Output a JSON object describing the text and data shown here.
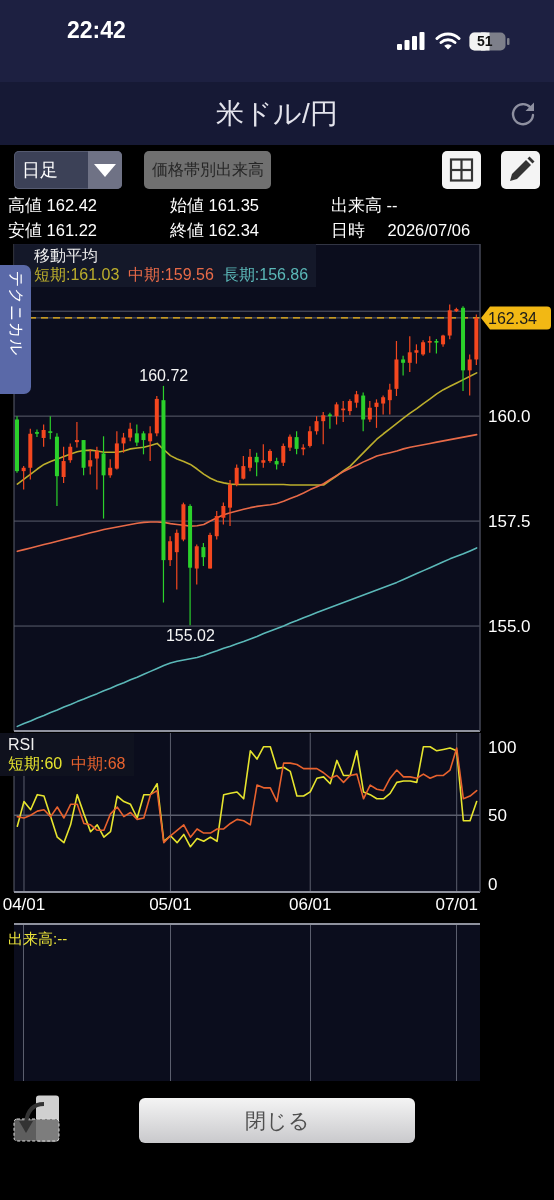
{
  "chart_data": [
    {
      "type": "candlestick",
      "title": "米ドル/円",
      "categories": [
        null,
        null,
        null,
        null,
        null,
        null,
        null,
        null,
        null,
        null,
        null,
        null,
        null,
        null,
        null,
        null,
        null,
        null,
        null,
        null,
        null,
        null,
        null,
        null,
        null,
        null,
        null,
        null,
        null,
        null,
        null,
        null,
        null,
        null,
        null,
        null,
        null,
        null,
        null,
        null,
        null,
        null,
        null,
        null,
        null,
        null,
        null,
        null,
        null,
        null,
        null,
        null,
        null,
        null,
        null,
        null,
        null,
        null,
        null,
        null,
        null,
        null,
        null,
        null,
        null,
        null,
        null,
        null,
        null,
        null
      ],
      "ohlc": [
        [
          159.92,
          160.0,
          158.65,
          158.69
        ],
        [
          158.69,
          158.81,
          158.25,
          158.77
        ],
        [
          158.77,
          159.7,
          158.49,
          159.58
        ],
        [
          159.62,
          159.68,
          159.5,
          159.58
        ],
        [
          159.48,
          159.8,
          159.27,
          159.67
        ],
        [
          159.64,
          160.0,
          159.45,
          159.6
        ],
        [
          159.51,
          159.59,
          157.86,
          158.57
        ],
        [
          158.55,
          159.27,
          158.41,
          158.93
        ],
        [
          158.95,
          159.35,
          158.89,
          159.27
        ],
        [
          159.38,
          159.86,
          159.25,
          159.43
        ],
        [
          159.43,
          159.43,
          158.59,
          158.77
        ],
        [
          158.8,
          159.21,
          158.61,
          158.95
        ],
        [
          158.99,
          159.27,
          158.25,
          159.17
        ],
        [
          159.11,
          159.52,
          157.56,
          158.59
        ],
        [
          158.59,
          158.97,
          158.53,
          158.77
        ],
        [
          158.75,
          159.64,
          158.73,
          159.35
        ],
        [
          159.35,
          159.6,
          159.13,
          159.49
        ],
        [
          159.49,
          159.84,
          159.4,
          159.7
        ],
        [
          159.59,
          159.8,
          159.29,
          159.37
        ],
        [
          159.59,
          159.64,
          159.09,
          159.43
        ],
        [
          159.4,
          159.76,
          158.93,
          159.59
        ],
        [
          159.59,
          160.48,
          159.52,
          160.41
        ],
        [
          160.38,
          160.72,
          155.56,
          156.57
        ],
        [
          156.57,
          157.14,
          156.43,
          157.02
        ],
        [
          156.76,
          157.3,
          155.87,
          157.22
        ],
        [
          157.06,
          157.94,
          157.02,
          157.9
        ],
        [
          157.86,
          157.9,
          155.02,
          156.39
        ],
        [
          156.37,
          156.94,
          155.99,
          156.9
        ],
        [
          156.88,
          156.98,
          156.43,
          156.64
        ],
        [
          156.37,
          157.22,
          156.37,
          157.17
        ],
        [
          157.14,
          157.74,
          157.06,
          157.62
        ],
        [
          157.58,
          157.94,
          157.42,
          157.86
        ],
        [
          157.82,
          158.48,
          157.38,
          158.37
        ],
        [
          158.37,
          158.85,
          158.33,
          158.77
        ],
        [
          158.51,
          159.05,
          158.49,
          158.81
        ],
        [
          158.77,
          159.22,
          158.69,
          159.03
        ],
        [
          159.03,
          159.13,
          158.57,
          158.9
        ],
        [
          158.89,
          159.33,
          158.77,
          158.95
        ],
        [
          158.93,
          159.21,
          158.89,
          159.17
        ],
        [
          158.93,
          159.01,
          158.73,
          158.85
        ],
        [
          158.89,
          159.35,
          158.81,
          159.29
        ],
        [
          159.25,
          159.56,
          159.17,
          159.51
        ],
        [
          159.5,
          159.64,
          159.09,
          159.22
        ],
        [
          159.21,
          159.33,
          159.07,
          159.25
        ],
        [
          159.29,
          159.76,
          159.25,
          159.64
        ],
        [
          159.64,
          160.0,
          159.56,
          159.88
        ],
        [
          159.88,
          160.1,
          159.33,
          160.02
        ],
        [
          160.04,
          160.08,
          159.7,
          160.0
        ],
        [
          160.0,
          160.33,
          159.8,
          160.28
        ],
        [
          160.14,
          160.36,
          159.86,
          160.18
        ],
        [
          160.12,
          160.4,
          160.02,
          160.36
        ],
        [
          160.32,
          160.6,
          160.2,
          160.52
        ],
        [
          160.49,
          160.56,
          159.64,
          159.92
        ],
        [
          159.92,
          160.36,
          159.86,
          160.2
        ],
        [
          160.22,
          160.4,
          159.72,
          160.32
        ],
        [
          160.3,
          160.49,
          160.04,
          160.45
        ],
        [
          160.38,
          160.77,
          160.04,
          160.63
        ],
        [
          160.65,
          161.79,
          160.48,
          161.35
        ],
        [
          161.35,
          161.44,
          160.97,
          161.27
        ],
        [
          161.27,
          161.9,
          161.05,
          161.52
        ],
        [
          161.51,
          161.71,
          161.25,
          161.57
        ],
        [
          161.47,
          161.81,
          161.44,
          161.76
        ],
        [
          161.75,
          161.9,
          161.51,
          161.79
        ],
        [
          161.79,
          161.84,
          161.49,
          161.75
        ],
        [
          161.71,
          161.94,
          161.65,
          161.92
        ],
        [
          161.92,
          162.66,
          161.83,
          162.52
        ],
        [
          162.5,
          162.58,
          162.48,
          162.55
        ],
        [
          162.58,
          162.62,
          160.6,
          161.09
        ],
        [
          161.09,
          161.47,
          160.49,
          161.35
        ],
        [
          161.35,
          162.42,
          161.22,
          162.34
        ]
      ],
      "colors": [
        "#2bd12b",
        "#f4471f",
        "#f4471f",
        "#2bd12b",
        "#f4471f",
        "#2bd12b",
        "#2bd12b",
        "#f4471f",
        "#f4471f",
        "#f4471f",
        "#2bd12b",
        "#f4471f",
        "#f4471f",
        "#2bd12b",
        "#f4471f",
        "#f4471f",
        "#f4471f",
        "#f4471f",
        "#2bd12b",
        "#2bd12b",
        "#f4471f",
        "#f4471f",
        "#2bd12b",
        "#f4471f",
        "#f4471f",
        "#f4471f",
        "#2bd12b",
        "#f4471f",
        "#2bd12b",
        "#f4471f",
        "#f4471f",
        "#f4471f",
        "#f4471f",
        "#f4471f",
        "#f4471f",
        "#f4471f",
        "#2bd12b",
        "#f4471f",
        "#f4471f",
        "#2bd12b",
        "#f4471f",
        "#f4471f",
        "#2bd12b",
        "#f4471f",
        "#f4471f",
        "#f4471f",
        "#f4471f",
        "#2bd12b",
        "#f4471f",
        "#f4471f",
        "#f4471f",
        "#f4471f",
        "#2bd12b",
        "#f4471f",
        "#f4471f",
        "#f4471f",
        "#f4471f",
        "#f4471f",
        "#2bd12b",
        "#f4471f",
        "#f4471f",
        "#f4471f",
        "#f4471f",
        "#2bd12b",
        "#f4471f",
        "#f4471f",
        "#f4471f",
        "#2bd12b",
        "#f4471f",
        "#f4471f"
      ],
      "series": [
        {
          "type": "line",
          "name": "短期:161.03",
          "color": "#bcae2c",
          "values": [
            158.38,
            158.5,
            158.62,
            158.74,
            158.85,
            158.92,
            158.98,
            159.04,
            159.1,
            159.15,
            159.18,
            159.19,
            159.17,
            159.14,
            159.14,
            159.14,
            159.17,
            159.22,
            159.24,
            159.26,
            159.3,
            159.35,
            159.2,
            159.06,
            158.98,
            158.92,
            158.85,
            158.74,
            158.62,
            158.52,
            158.45,
            158.41,
            158.38,
            158.37,
            158.37,
            158.37,
            158.37,
            158.37,
            158.37,
            158.37,
            158.37,
            158.36,
            158.36,
            158.36,
            158.36,
            158.36,
            158.36,
            158.47,
            158.58,
            158.7,
            158.81,
            158.97,
            159.13,
            159.29,
            159.45,
            159.58,
            159.7,
            159.83,
            159.95,
            160.07,
            160.18,
            160.3,
            160.41,
            160.53,
            160.63,
            160.71,
            160.79,
            160.87,
            160.95,
            161.03
          ]
        },
        {
          "type": "line",
          "name": "中期:159.56",
          "color": "#e86a48",
          "values": [
            156.78,
            156.82,
            156.86,
            156.9,
            156.94,
            156.98,
            157.02,
            157.06,
            157.1,
            157.14,
            157.18,
            157.22,
            157.26,
            157.3,
            157.33,
            157.36,
            157.39,
            157.42,
            157.45,
            157.47,
            157.48,
            157.48,
            157.47,
            157.44,
            157.42,
            157.4,
            157.38,
            157.39,
            157.42,
            157.5,
            157.58,
            157.65,
            157.7,
            157.74,
            157.78,
            157.82,
            157.85,
            157.87,
            157.89,
            157.92,
            157.97,
            158.04,
            158.1,
            158.17,
            158.25,
            158.32,
            158.39,
            158.49,
            158.59,
            158.68,
            158.76,
            158.83,
            158.91,
            158.98,
            159.05,
            159.09,
            159.13,
            159.17,
            159.22,
            159.26,
            159.29,
            159.32,
            159.35,
            159.38,
            159.41,
            159.44,
            159.47,
            159.5,
            159.53,
            159.56
          ]
        },
        {
          "type": "line",
          "name": "長期:156.86",
          "color": "#5bb8b8",
          "values": [
            152.61,
            152.68,
            152.74,
            152.81,
            152.87,
            152.94,
            153.0,
            153.07,
            153.13,
            153.2,
            153.26,
            153.33,
            153.39,
            153.46,
            153.52,
            153.59,
            153.65,
            153.72,
            153.78,
            153.85,
            153.92,
            153.99,
            154.06,
            154.12,
            154.16,
            154.19,
            154.22,
            154.25,
            154.3,
            154.36,
            154.41,
            154.47,
            154.52,
            154.58,
            154.63,
            154.69,
            154.75,
            154.82,
            154.88,
            154.94,
            155.0,
            155.07,
            155.13,
            155.2,
            155.26,
            155.32,
            155.38,
            155.44,
            155.5,
            155.56,
            155.62,
            155.68,
            155.74,
            155.8,
            155.86,
            155.92,
            155.98,
            156.04,
            156.11,
            156.18,
            156.25,
            156.32,
            156.39,
            156.46,
            156.53,
            156.6,
            156.66,
            156.72,
            156.79,
            156.86
          ]
        }
      ],
      "legend": "top left",
      "legend_title": "移動平均",
      "ylim": [
        152.5,
        164.1
      ],
      "yticks": [
        {
          "value": 155,
          "label": "155.0"
        },
        157.5,
        {
          "value": 160,
          "label": "160.0"
        },
        162.34,
        {
          "value": 162.5,
          "label": null
        }
      ],
      "grid": true,
      "ref_lines": [
        {
          "axis": "y",
          "value": 162.34,
          "color": "#f2b814",
          "line_style": "dashed"
        }
      ],
      "annotations": [
        "22:42",
        "51",
        "日足",
        "価格帯別出来高",
        "高値 162.42",
        "始値 161.35",
        "出来高 --",
        "安値 161.22",
        "終値 162.34",
        "日時 2026/07/06",
        "テクニカル",
        "閉じる",
        {
          "text": "160.72",
          "y": 160.72
        },
        {
          "text": "155.02",
          "y": 155.02
        }
      ]
    },
    {
      "type": "line",
      "legend_title": "RSI",
      "categories": [
        null,
        "04/01",
        null,
        null,
        null,
        null,
        null,
        null,
        null,
        null,
        null,
        null,
        null,
        null,
        null,
        null,
        null,
        null,
        null,
        null,
        null,
        null,
        null,
        "05/01",
        null,
        null,
        null,
        null,
        null,
        null,
        null,
        null,
        null,
        null,
        null,
        null,
        null,
        null,
        null,
        null,
        null,
        null,
        null,
        null,
        "06/01",
        null,
        null,
        null,
        null,
        null,
        null,
        null,
        null,
        null,
        null,
        null,
        null,
        null,
        null,
        null,
        null,
        null,
        null,
        null,
        null,
        null,
        "07/01",
        null,
        null,
        null
      ],
      "series": [
        {
          "name": "短期:60",
          "color": "#e6e42e",
          "values": [
            42,
            60,
            54,
            65,
            64,
            49,
            34,
            30,
            43,
            65,
            51,
            38,
            43,
            34,
            38,
            64,
            60,
            58,
            48,
            65,
            65,
            73,
            31,
            35,
            30,
            36,
            27,
            33,
            31,
            34,
            31,
            65,
            66,
            67,
            62,
            97,
            91,
            100,
            100,
            84,
            85,
            82,
            64,
            64,
            67,
            77,
            78,
            73,
            90,
            79,
            79,
            97,
            67,
            65,
            62,
            62,
            66,
            74,
            75,
            75,
            74,
            100,
            100,
            97,
            98,
            99,
            97,
            46,
            46,
            60
          ]
        },
        {
          "name": "中期:68",
          "color": "#e8622e",
          "values": [
            49,
            48,
            50,
            53,
            54,
            49,
            56,
            48,
            58,
            58,
            44,
            43,
            39,
            39,
            51,
            56,
            49,
            52,
            47,
            48,
            65,
            68,
            30,
            35,
            39,
            43,
            34,
            40,
            37,
            37,
            40,
            40,
            44,
            47,
            46,
            43,
            72,
            70,
            70,
            60,
            88,
            88,
            87,
            84,
            84,
            84,
            81,
            77,
            79,
            74,
            79,
            80,
            62,
            72,
            69,
            68,
            77,
            83,
            78,
            78,
            77,
            80,
            77,
            79,
            79,
            83,
            99,
            62,
            64,
            68
          ]
        }
      ],
      "legend": "top left",
      "ylim": [
        -6,
        110
      ],
      "yticks": [
        0,
        50,
        100
      ],
      "grid": "x",
      "ref_lines": [
        {
          "axis": "y",
          "value": 50,
          "color": "#5b5e6d"
        }
      ],
      "annotations": [
        "出来高:--"
      ]
    }
  ]
}
